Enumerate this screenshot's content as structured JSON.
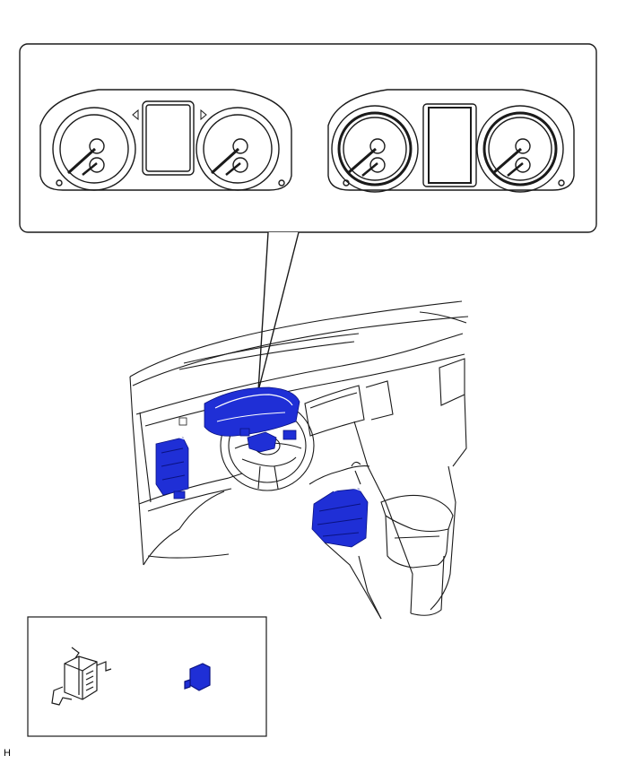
{
  "figure": {
    "corner_code": "H",
    "colors": {
      "line": "#1a1a1a",
      "highlight": "#1f2fd6",
      "highlight_dark": "#0a1280",
      "background": "#ffffff"
    }
  }
}
